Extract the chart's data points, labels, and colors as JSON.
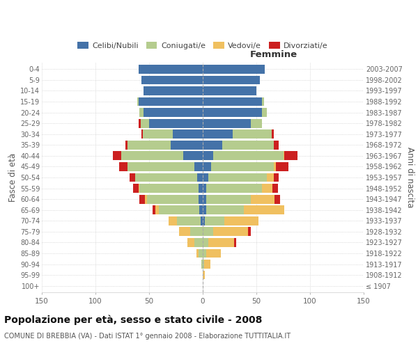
{
  "age_groups": [
    "100+",
    "95-99",
    "90-94",
    "85-89",
    "80-84",
    "75-79",
    "70-74",
    "65-69",
    "60-64",
    "55-59",
    "50-54",
    "45-49",
    "40-44",
    "35-39",
    "30-34",
    "25-29",
    "20-24",
    "15-19",
    "10-14",
    "5-9",
    "0-4"
  ],
  "birth_years": [
    "≤ 1907",
    "1908-1912",
    "1913-1917",
    "1918-1922",
    "1923-1927",
    "1928-1932",
    "1933-1937",
    "1938-1942",
    "1943-1947",
    "1948-1952",
    "1953-1957",
    "1958-1962",
    "1963-1967",
    "1968-1972",
    "1973-1977",
    "1978-1982",
    "1983-1987",
    "1988-1992",
    "1993-1997",
    "1998-2002",
    "2003-2007"
  ],
  "male": {
    "celibi": [
      0,
      0,
      0,
      0,
      0,
      0,
      2,
      3,
      4,
      4,
      5,
      8,
      18,
      30,
      28,
      50,
      55,
      60,
      55,
      57,
      60
    ],
    "coniugati": [
      0,
      0,
      1,
      4,
      8,
      12,
      22,
      38,
      48,
      55,
      58,
      62,
      58,
      40,
      28,
      8,
      4,
      1,
      0,
      0,
      0
    ],
    "vedovi": [
      0,
      0,
      0,
      2,
      6,
      10,
      8,
      3,
      2,
      1,
      0,
      0,
      0,
      0,
      0,
      0,
      0,
      0,
      0,
      0,
      0
    ],
    "divorziati": [
      0,
      0,
      0,
      0,
      0,
      0,
      0,
      3,
      5,
      5,
      5,
      8,
      8,
      2,
      1,
      2,
      0,
      0,
      0,
      0,
      0
    ]
  },
  "female": {
    "nubili": [
      0,
      0,
      0,
      0,
      0,
      0,
      2,
      3,
      3,
      3,
      5,
      8,
      10,
      18,
      28,
      45,
      55,
      55,
      50,
      53,
      58
    ],
    "coniugate": [
      0,
      0,
      1,
      3,
      5,
      10,
      18,
      35,
      42,
      52,
      55,
      58,
      65,
      48,
      36,
      10,
      5,
      2,
      0,
      0,
      0
    ],
    "vedove": [
      0,
      2,
      6,
      14,
      24,
      32,
      32,
      38,
      22,
      10,
      6,
      2,
      1,
      0,
      0,
      0,
      0,
      0,
      0,
      0,
      0
    ],
    "divorziate": [
      0,
      0,
      0,
      0,
      2,
      3,
      0,
      0,
      5,
      5,
      5,
      12,
      12,
      5,
      2,
      0,
      0,
      0,
      0,
      0,
      0
    ]
  },
  "colors": {
    "celibi_nubili": "#4472a8",
    "coniugati": "#b5cc8e",
    "vedovi": "#f0c060",
    "divorziati": "#cc2020"
  },
  "xlim": 150,
  "title": "Popolazione per età, sesso e stato civile - 2008",
  "subtitle": "COMUNE DI BREBBIA (VA) - Dati ISTAT 1° gennaio 2008 - Elaborazione TUTTITALIA.IT",
  "ylabel_left": "Fasce di età",
  "ylabel_right": "Anni di nascita",
  "femmine_label": "Femmine",
  "legend": [
    "Celibi/Nubili",
    "Coniugati/e",
    "Vedovi/e",
    "Divorziati/e"
  ],
  "xticks": [
    -150,
    -100,
    -50,
    0,
    50,
    100,
    150
  ]
}
